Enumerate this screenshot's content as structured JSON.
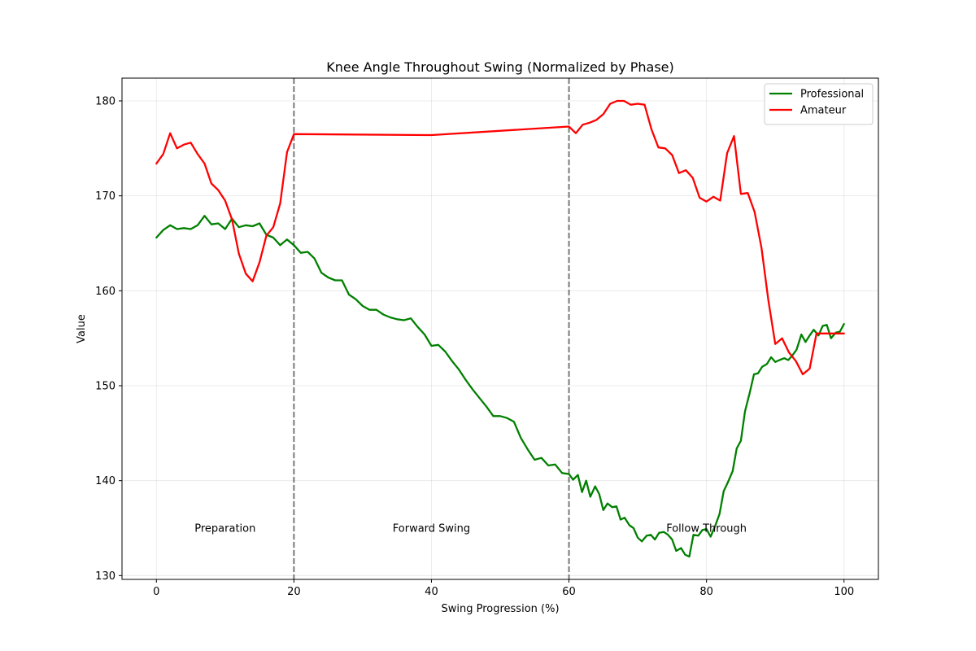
{
  "chart_data": {
    "type": "line",
    "title": "Knee Angle Throughout Swing (Normalized by Phase)",
    "xlabel": "Swing Progression (%)",
    "ylabel": "Value",
    "xlim": [
      -5,
      105
    ],
    "ylim": [
      129.6,
      182.4
    ],
    "xticks": [
      0,
      20,
      40,
      60,
      80,
      100
    ],
    "yticks": [
      130,
      140,
      150,
      160,
      170,
      180
    ],
    "grid": true,
    "legend_position": "top-right",
    "phase_boundaries": [
      20,
      60
    ],
    "phase_labels": [
      {
        "text": "Preparation",
        "x": 10,
        "y": 135
      },
      {
        "text": "Forward Swing",
        "x": 40,
        "y": 135
      },
      {
        "text": "Follow Through",
        "x": 80,
        "y": 135
      }
    ],
    "series": [
      {
        "name": "Professional",
        "color": "#008000",
        "x": [
          0,
          1,
          2,
          3,
          4,
          5,
          6,
          7,
          8,
          9,
          10,
          11,
          12,
          13,
          14,
          15,
          16,
          17,
          18,
          19,
          20,
          21,
          22,
          23,
          24,
          25,
          26,
          27,
          28,
          29,
          30,
          31,
          32,
          33,
          34,
          35,
          36,
          37,
          38,
          39,
          40,
          41,
          42,
          43,
          44,
          45,
          46,
          47,
          48,
          49,
          50,
          51,
          52,
          53,
          54,
          55,
          56,
          57,
          58,
          59,
          60,
          60.6,
          61.3,
          61.9,
          62.5,
          63.1,
          63.8,
          64.4,
          65,
          65.6,
          66.3,
          66.9,
          67.5,
          68.1,
          68.8,
          69.4,
          70,
          70.6,
          71.3,
          71.9,
          72.5,
          73.1,
          73.8,
          74.4,
          75,
          75.6,
          76.3,
          76.9,
          77.5,
          78.1,
          78.8,
          79.4,
          80,
          80.6,
          81.3,
          81.9,
          82.5,
          83.1,
          83.8,
          84.4,
          85,
          85.6,
          86.3,
          86.9,
          87.5,
          88.1,
          88.8,
          89.4,
          90,
          90.6,
          91.3,
          91.9,
          92.5,
          93.1,
          93.8,
          94.4,
          95,
          95.6,
          96.3,
          96.9,
          97.5,
          98.1,
          98.8,
          99.4,
          100
        ],
        "y": [
          165.6,
          166.4,
          166.9,
          166.5,
          166.6,
          166.5,
          166.9,
          167.9,
          167.0,
          167.1,
          166.5,
          167.6,
          166.7,
          166.9,
          166.8,
          167.1,
          165.9,
          165.6,
          164.8,
          165.4,
          164.8,
          164.0,
          164.1,
          163.4,
          161.9,
          161.4,
          161.1,
          161.1,
          159.6,
          159.1,
          158.4,
          158.0,
          158.0,
          157.5,
          157.2,
          157.0,
          156.9,
          157.1,
          156.2,
          155.4,
          154.2,
          154.3,
          153.6,
          152.6,
          151.7,
          150.6,
          149.6,
          148.7,
          147.8,
          146.8,
          146.8,
          146.6,
          146.2,
          144.5,
          143.3,
          142.2,
          142.4,
          141.6,
          141.7,
          140.8,
          140.7,
          140.1,
          140.6,
          138.8,
          140.0,
          138.3,
          139.4,
          138.6,
          136.9,
          137.6,
          137.2,
          137.3,
          135.9,
          136.1,
          135.3,
          135.0,
          134.0,
          133.6,
          134.2,
          134.3,
          133.8,
          134.5,
          134.6,
          134.3,
          133.8,
          132.6,
          132.9,
          132.2,
          132.0,
          134.3,
          134.2,
          134.8,
          134.9,
          134.1,
          135.3,
          136.5,
          138.9,
          139.8,
          141.0,
          143.4,
          144.2,
          147.3,
          149.3,
          151.2,
          151.3,
          152.0,
          152.3,
          153.0,
          152.5,
          152.7,
          152.9,
          152.7,
          153.2,
          153.8,
          155.4,
          154.6,
          155.3,
          155.9,
          155.3,
          156.3,
          156.4,
          155.0,
          155.6,
          155.7,
          156.5
        ]
      },
      {
        "name": "Amateur",
        "color": "#ff0000",
        "x": [
          0,
          1,
          2,
          3,
          4,
          5,
          6,
          7,
          8,
          9,
          10,
          11,
          12,
          13,
          14,
          15,
          16,
          17,
          18,
          19,
          20,
          40,
          60,
          61,
          62,
          63,
          64,
          65,
          66,
          67,
          68,
          69,
          70,
          71,
          72,
          73,
          74,
          75,
          76,
          77,
          78,
          79,
          80,
          81,
          82,
          83,
          84,
          85,
          86,
          87,
          88,
          89,
          90,
          91,
          92,
          93,
          94,
          95,
          96,
          97,
          98,
          99,
          100
        ],
        "y": [
          173.4,
          174.4,
          176.6,
          175.0,
          175.4,
          175.6,
          174.4,
          173.4,
          171.3,
          170.6,
          169.5,
          167.5,
          163.9,
          161.8,
          161.0,
          163.0,
          165.8,
          166.7,
          169.2,
          174.6,
          176.5,
          176.4,
          177.3,
          176.6,
          177.5,
          177.7,
          178.0,
          178.6,
          179.7,
          180.0,
          180.0,
          179.6,
          179.7,
          179.6,
          177.0,
          175.1,
          175.0,
          174.3,
          172.4,
          172.7,
          171.9,
          169.8,
          169.4,
          169.9,
          169.5,
          174.5,
          176.3,
          170.2,
          170.3,
          168.3,
          164.5,
          159.0,
          154.4,
          155.0,
          153.5,
          152.6,
          151.2,
          151.8,
          155.5,
          155.5,
          155.5,
          155.5,
          155.5
        ]
      }
    ]
  }
}
